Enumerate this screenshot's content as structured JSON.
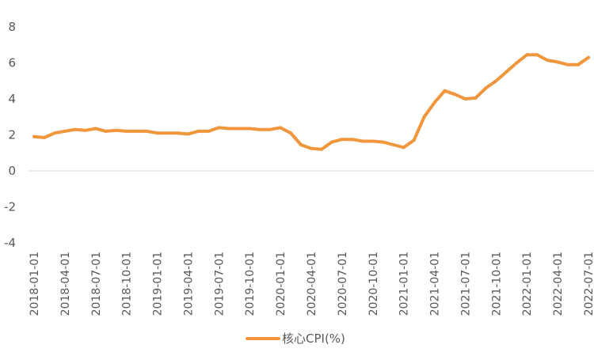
{
  "chart_data": {
    "type": "line",
    "y_ticks": [
      "8",
      "6",
      "4",
      "2",
      "0",
      "-2",
      "-4"
    ],
    "ylim": [
      -4,
      8
    ],
    "grid": false,
    "legend_position": "bottom",
    "x_tick_labels": [
      "2018-01-01",
      "2018-04-01",
      "2018-07-01",
      "2018-10-01",
      "2019-01-01",
      "2019-04-01",
      "2019-07-01",
      "2019-10-01",
      "2020-01-01",
      "2020-04-01",
      "2020-07-01",
      "2020-10-01",
      "2021-01-01",
      "2021-04-01",
      "2021-07-01",
      "2021-10-01",
      "2022-01-01",
      "2022-04-01",
      "2022-07-01"
    ],
    "series": [
      {
        "name": "核心CPI(%)",
        "color": "#F0963C",
        "values": [
          1.9,
          1.85,
          2.1,
          2.2,
          2.3,
          2.25,
          2.35,
          2.2,
          2.25,
          2.2,
          2.2,
          2.2,
          2.1,
          2.1,
          2.1,
          2.05,
          2.2,
          2.2,
          2.4,
          2.35,
          2.35,
          2.35,
          2.3,
          2.3,
          2.4,
          2.1,
          1.45,
          1.25,
          1.2,
          1.6,
          1.75,
          1.75,
          1.65,
          1.65,
          1.6,
          1.45,
          1.3,
          1.7,
          3.0,
          3.8,
          4.45,
          4.25,
          4.0,
          4.05,
          4.6,
          5.0,
          5.5,
          6.0,
          6.45,
          6.45,
          6.15,
          6.05,
          5.9,
          5.9,
          6.3
        ]
      }
    ]
  }
}
